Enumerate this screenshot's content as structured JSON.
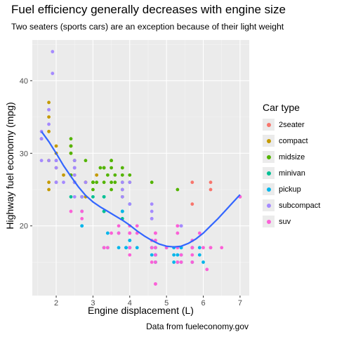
{
  "chart_data": {
    "type": "scatter",
    "title": "Fuel efficiency generally decreases with engine size",
    "subtitle": "Two seaters (sports cars) are an exception because of their light weight",
    "caption": "Data from fueleconomy.gov",
    "xlabel": "Engine displacement (L)",
    "ylabel": "Highway fuel economy (mpg)",
    "xlim": [
      1.35,
      7.25
    ],
    "ylim": [
      10.4,
      45.6
    ],
    "xticks": [
      2,
      3,
      4,
      5,
      6,
      7
    ],
    "yticks": [
      20,
      30,
      40
    ],
    "grid": true,
    "legend_title": "Car type",
    "legend_position": "right",
    "series": [
      {
        "name": "2seater",
        "color": "#F8766D",
        "points": [
          [
            5.7,
            26
          ],
          [
            5.7,
            23
          ],
          [
            6.2,
            26
          ],
          [
            6.2,
            25
          ],
          [
            7.0,
            24
          ]
        ]
      },
      {
        "name": "compact",
        "color": "#C49A00",
        "points": [
          [
            1.8,
            29
          ],
          [
            1.8,
            29
          ],
          [
            2.0,
            31
          ],
          [
            2.0,
            30
          ],
          [
            2.8,
            26
          ],
          [
            2.8,
            26
          ],
          [
            3.1,
            27
          ],
          [
            1.8,
            26
          ],
          [
            1.8,
            25
          ],
          [
            2.0,
            28
          ],
          [
            2.4,
            27
          ],
          [
            2.4,
            30
          ],
          [
            2.4,
            31
          ],
          [
            2.5,
            29
          ],
          [
            2.8,
            24
          ],
          [
            2.2,
            27
          ],
          [
            1.8,
            35
          ],
          [
            1.8,
            37
          ],
          [
            1.8,
            33
          ],
          [
            2.0,
            29
          ],
          [
            2.4,
            31
          ],
          [
            2.5,
            28
          ],
          [
            2.7,
            24
          ],
          [
            2.5,
            27
          ],
          [
            2.0,
            26
          ],
          [
            2.8,
            26
          ]
        ]
      },
      {
        "name": "midsize",
        "color": "#53B400",
        "points": [
          [
            2.4,
            27
          ],
          [
            2.4,
            30
          ],
          [
            3.1,
            26
          ],
          [
            3.5,
            29
          ],
          [
            3.6,
            26
          ],
          [
            2.5,
            29
          ],
          [
            3.0,
            26
          ],
          [
            3.3,
            28
          ],
          [
            3.8,
            27
          ],
          [
            4.6,
            26
          ],
          [
            3.5,
            29
          ],
          [
            2.4,
            32
          ],
          [
            3.0,
            26
          ],
          [
            3.3,
            28
          ],
          [
            2.5,
            26
          ],
          [
            2.5,
            26
          ],
          [
            2.4,
            31
          ],
          [
            3.5,
            28
          ],
          [
            4.0,
            27
          ],
          [
            3.0,
            26
          ],
          [
            3.8,
            25
          ],
          [
            5.3,
            25
          ],
          [
            3.4,
            27
          ],
          [
            3.2,
            28
          ],
          [
            3.8,
            26
          ],
          [
            3.0,
            25
          ],
          [
            3.3,
            26
          ],
          [
            2.8,
            29
          ],
          [
            2.5,
            26
          ],
          [
            3.5,
            26
          ],
          [
            3.8,
            28
          ],
          [
            3.6,
            27
          ],
          [
            4.0,
            26
          ],
          [
            3.8,
            24
          ],
          [
            3.5,
            25
          ]
        ]
      },
      {
        "name": "minivan",
        "color": "#00C094",
        "points": [
          [
            2.4,
            24
          ],
          [
            3.0,
            24
          ],
          [
            3.3,
            22
          ],
          [
            3.3,
            22
          ],
          [
            3.3,
            24
          ],
          [
            3.3,
            24
          ],
          [
            3.8,
            22
          ],
          [
            3.8,
            21
          ],
          [
            4.0,
            23
          ],
          [
            3.8,
            22
          ],
          [
            3.3,
            17
          ]
        ]
      },
      {
        "name": "pickup",
        "color": "#00B6EB",
        "points": [
          [
            2.7,
            20
          ],
          [
            2.7,
            20
          ],
          [
            3.4,
            19
          ],
          [
            3.7,
            19
          ],
          [
            3.9,
            17
          ],
          [
            4.7,
            17
          ],
          [
            4.7,
            17
          ],
          [
            4.7,
            16
          ],
          [
            5.2,
            16
          ],
          [
            5.2,
            15
          ],
          [
            5.7,
            17
          ],
          [
            5.9,
            17
          ],
          [
            4.2,
            17
          ],
          [
            4.6,
            17
          ],
          [
            4.6,
            17
          ],
          [
            5.4,
            15
          ],
          [
            5.4,
            17
          ],
          [
            5.4,
            16
          ],
          [
            2.7,
            22
          ],
          [
            3.4,
            17
          ],
          [
            4.0,
            18
          ],
          [
            4.7,
            16
          ],
          [
            5.7,
            15
          ],
          [
            6.0,
            15
          ],
          [
            4.0,
            17
          ],
          [
            4.6,
            16
          ],
          [
            5.3,
            15
          ],
          [
            5.3,
            16
          ],
          [
            5.4,
            17
          ],
          [
            4.7,
            15
          ],
          [
            4.7,
            15
          ],
          [
            5.2,
            17
          ],
          [
            5.9,
            16
          ],
          [
            5.7,
            17
          ],
          [
            4.7,
            16
          ],
          [
            2.7,
            24
          ],
          [
            3.8,
            22
          ],
          [
            4.0,
            18
          ],
          [
            5.0,
            17
          ],
          [
            4.0,
            17
          ],
          [
            3.7,
            17
          ],
          [
            3.9,
            17
          ]
        ]
      },
      {
        "name": "subcompact",
        "color": "#A58AFF",
        "points": [
          [
            1.6,
            33
          ],
          [
            1.6,
            32
          ],
          [
            1.6,
            32
          ],
          [
            1.6,
            29
          ],
          [
            1.6,
            32
          ],
          [
            1.8,
            34
          ],
          [
            1.8,
            36
          ],
          [
            1.8,
            36
          ],
          [
            2.0,
            29
          ],
          [
            1.9,
            44
          ],
          [
            1.9,
            41
          ],
          [
            2.0,
            29
          ],
          [
            2.0,
            26
          ],
          [
            2.5,
            29
          ],
          [
            2.5,
            28
          ],
          [
            2.5,
            26
          ],
          [
            2.2,
            26
          ],
          [
            2.5,
            27
          ],
          [
            3.8,
            26
          ],
          [
            3.8,
            25
          ],
          [
            4.0,
            26
          ],
          [
            4.6,
            22
          ],
          [
            4.6,
            23
          ],
          [
            4.6,
            21
          ],
          [
            5.4,
            20
          ],
          [
            4.0,
            23
          ],
          [
            4.6,
            21
          ],
          [
            2.0,
            28
          ],
          [
            2.5,
            24
          ],
          [
            2.5,
            26
          ],
          [
            2.0,
            29
          ],
          [
            2.5,
            28
          ],
          [
            2.7,
            24
          ],
          [
            3.8,
            24
          ],
          [
            2.0,
            26
          ],
          [
            1.8,
            29
          ],
          [
            2.8,
            26
          ],
          [
            5.4,
            20
          ]
        ]
      },
      {
        "name": "suv",
        "color": "#FB61D7",
        "points": [
          [
            5.3,
            20
          ],
          [
            5.3,
            15
          ],
          [
            5.3,
            20
          ],
          [
            5.7,
            17
          ],
          [
            6.0,
            17
          ],
          [
            5.7,
            17
          ],
          [
            5.7,
            15
          ],
          [
            6.2,
            17
          ],
          [
            6.2,
            17
          ],
          [
            7.0,
            24
          ],
          [
            5.3,
            17
          ],
          [
            4.0,
            17
          ],
          [
            4.0,
            19
          ],
          [
            4.6,
            15
          ],
          [
            5.0,
            17
          ],
          [
            4.2,
            19
          ],
          [
            4.7,
            16
          ],
          [
            4.7,
            12
          ],
          [
            4.7,
            12
          ],
          [
            5.7,
            16
          ],
          [
            5.7,
            18
          ],
          [
            6.1,
            14
          ],
          [
            5.4,
            15
          ],
          [
            5.4,
            16
          ],
          [
            4.0,
            19
          ],
          [
            4.0,
            16
          ],
          [
            4.6,
            17
          ],
          [
            4.0,
            19
          ],
          [
            4.0,
            20
          ],
          [
            4.7,
            17
          ],
          [
            4.7,
            15
          ],
          [
            5.7,
            17
          ],
          [
            6.5,
            17
          ],
          [
            2.4,
            22
          ],
          [
            4.6,
            18
          ],
          [
            3.3,
            17
          ],
          [
            4.7,
            19
          ],
          [
            3.7,
            19
          ],
          [
            5.9,
            19
          ],
          [
            2.7,
            22
          ],
          [
            4.0,
            20
          ],
          [
            4.7,
            19
          ],
          [
            2.7,
            21
          ],
          [
            4.0,
            17
          ],
          [
            3.5,
            19
          ],
          [
            3.7,
            20
          ],
          [
            5.3,
            19
          ],
          [
            4.7,
            18
          ],
          [
            3.4,
            17
          ],
          [
            4.2,
            20
          ]
        ]
      }
    ],
    "smooth": [
      [
        1.6,
        33.0
      ],
      [
        1.8,
        31.6
      ],
      [
        2.0,
        30.0
      ],
      [
        2.2,
        28.3
      ],
      [
        2.4,
        26.8
      ],
      [
        2.6,
        25.4
      ],
      [
        2.8,
        24.2
      ],
      [
        3.0,
        23.3
      ],
      [
        3.2,
        22.6
      ],
      [
        3.4,
        22.0
      ],
      [
        3.6,
        21.4
      ],
      [
        3.8,
        20.8
      ],
      [
        4.0,
        20.1
      ],
      [
        4.2,
        19.3
      ],
      [
        4.4,
        18.6
      ],
      [
        4.6,
        18.0
      ],
      [
        4.8,
        17.5
      ],
      [
        5.0,
        17.2
      ],
      [
        5.2,
        17.1
      ],
      [
        5.4,
        17.2
      ],
      [
        5.6,
        17.6
      ],
      [
        5.8,
        18.2
      ],
      [
        6.0,
        19.0
      ],
      [
        6.2,
        20.0
      ],
      [
        6.4,
        21.0
      ],
      [
        6.6,
        22.1
      ],
      [
        6.8,
        23.2
      ],
      [
        7.0,
        24.3
      ]
    ],
    "smooth_color": "#3366FF"
  }
}
